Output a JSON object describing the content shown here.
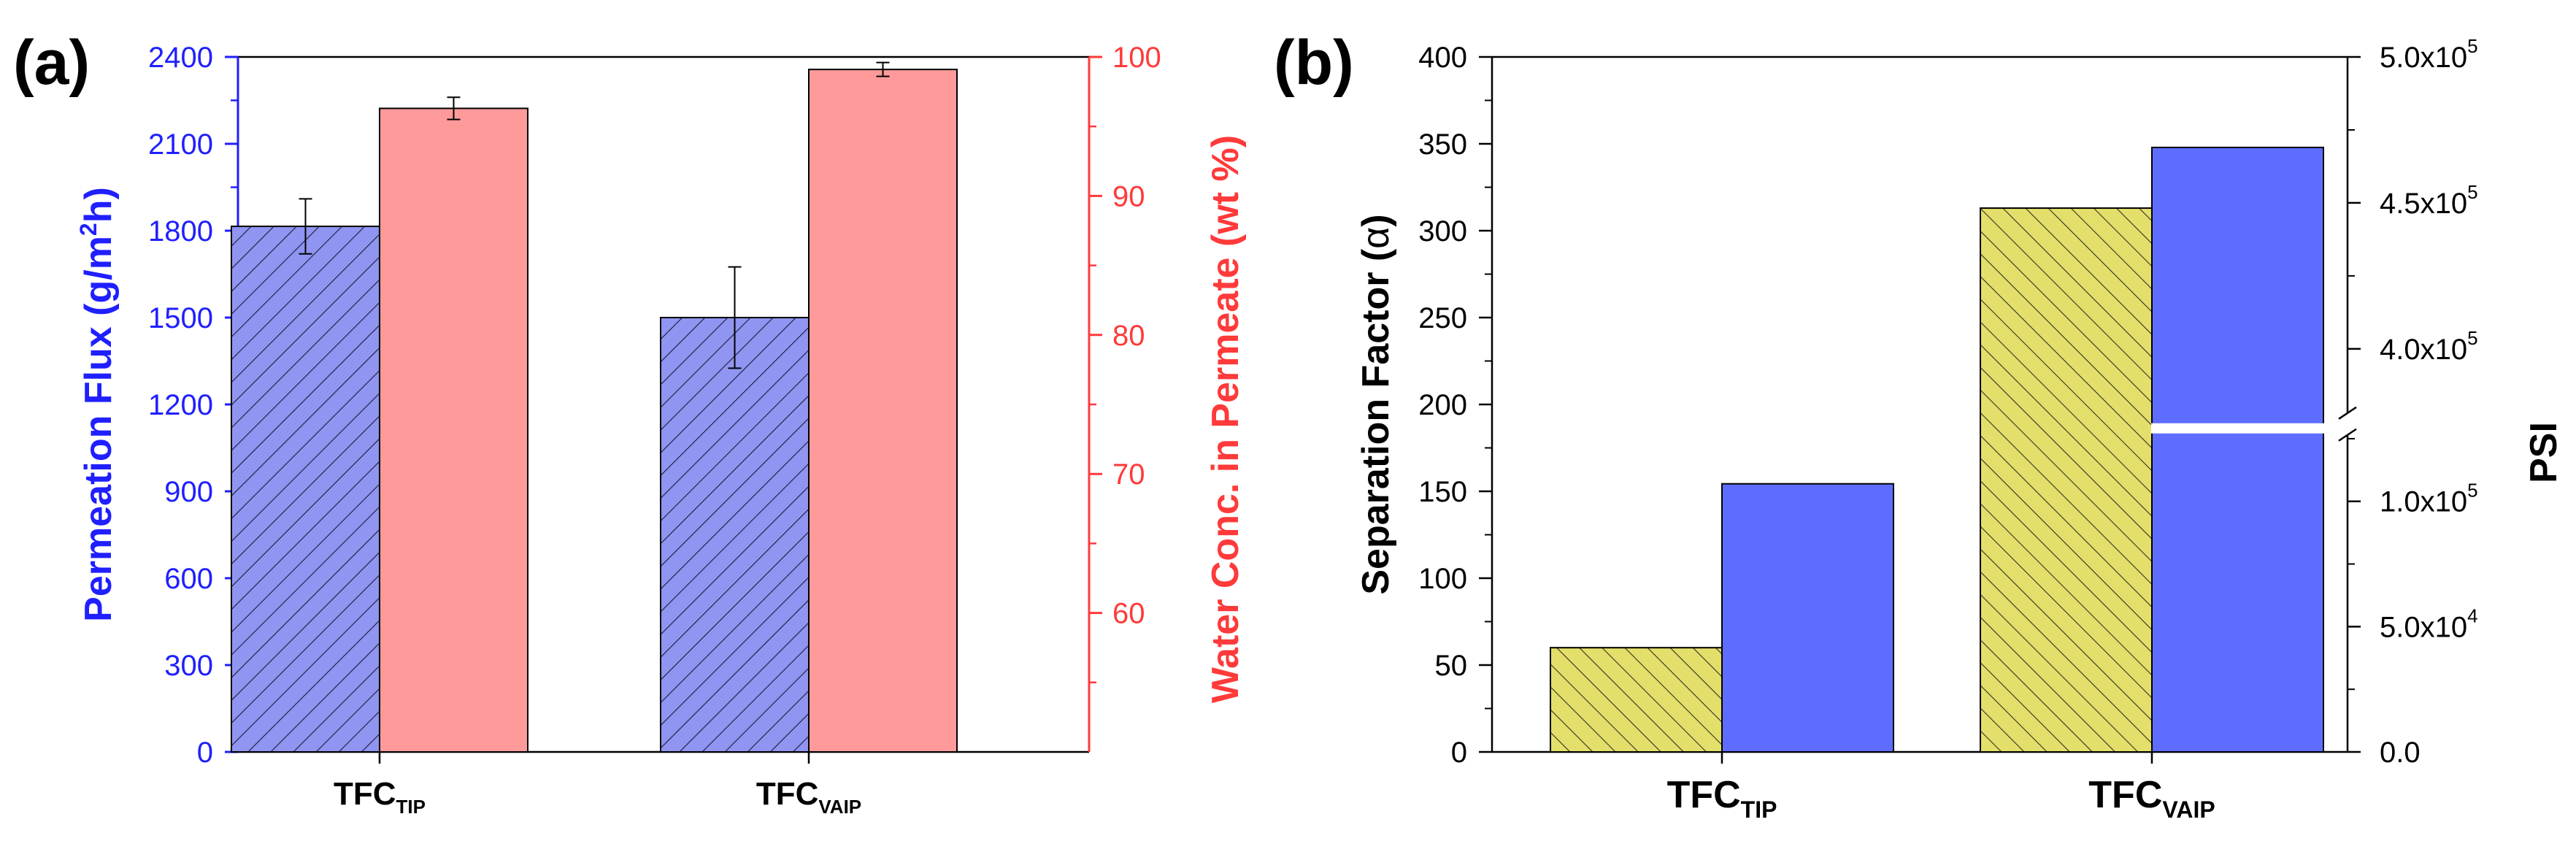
{
  "colors": {
    "blue_axis": "#1f1fff",
    "red_axis": "#ff3a3a",
    "blue_bar": "#8f95f0",
    "red_bar": "#ff9a9a",
    "yellow_bar": "#e3df6a",
    "blue_solid": "#5f6dff",
    "black": "#000000"
  },
  "chart_data": [
    {
      "type": "bar",
      "panel_label": "(a)",
      "categories": [
        "TFC",
        "TFC"
      ],
      "category_subscripts": [
        "TIP",
        "VAIP"
      ],
      "left_axis": {
        "label": "Permeation Flux (g/m",
        "label_sup": "2",
        "label_end": "h)",
        "ylim": [
          0,
          2400
        ],
        "ticks": [
          "0",
          "300",
          "600",
          "900",
          "1200",
          "1500",
          "1800",
          "2100",
          "2400"
        ]
      },
      "right_axis": {
        "label": "Water Conc. in Permeate (wt %)",
        "ylim": [
          50,
          100
        ],
        "ticks": [
          "60",
          "70",
          "80",
          "90",
          "100"
        ]
      },
      "series": [
        {
          "name": "Permeation Flux",
          "axis": "left",
          "pattern": "hatch",
          "values": [
            1815,
            1500
          ],
          "errors": [
            95,
            175
          ]
        },
        {
          "name": "Water Conc. in Permeate",
          "axis": "right",
          "pattern": "solid",
          "values": [
            96.3,
            99.1
          ],
          "errors": [
            0.8,
            0.5
          ]
        }
      ]
    },
    {
      "type": "bar",
      "panel_label": "(b)",
      "categories": [
        "TFC",
        "TFC"
      ],
      "category_subscripts": [
        "TIP",
        "VAIP"
      ],
      "left_axis": {
        "label": "Separation Factor (",
        "label_symbol": "α",
        "label_end": ")",
        "ylim": [
          0,
          400
        ],
        "ticks": [
          "0",
          "50",
          "100",
          "150",
          "200",
          "250",
          "300",
          "350",
          "400"
        ]
      },
      "right_axis": {
        "label": "PSI",
        "broken": true,
        "lower_ylim": [
          0,
          130000
        ],
        "upper_ylim": [
          375000,
          500000
        ],
        "ticks_lower": [
          {
            "value": 0,
            "mantissa": "0.0",
            "exp": ""
          },
          {
            "value": 50000,
            "mantissa": "5.0x10",
            "exp": "4"
          },
          {
            "value": 100000,
            "mantissa": "1.0x10",
            "exp": "5"
          }
        ],
        "ticks_upper": [
          {
            "value": 400000,
            "mantissa": "4.0x10",
            "exp": "5"
          },
          {
            "value": 450000,
            "mantissa": "4.5x10",
            "exp": "5"
          },
          {
            "value": 500000,
            "mantissa": "5.0x10",
            "exp": "5"
          }
        ]
      },
      "series": [
        {
          "name": "Separation Factor",
          "axis": "left",
          "pattern": "hatch",
          "values": [
            60,
            313
          ]
        },
        {
          "name": "PSI",
          "axis": "right",
          "pattern": "solid",
          "values": [
            107000,
            469000
          ]
        }
      ]
    }
  ]
}
